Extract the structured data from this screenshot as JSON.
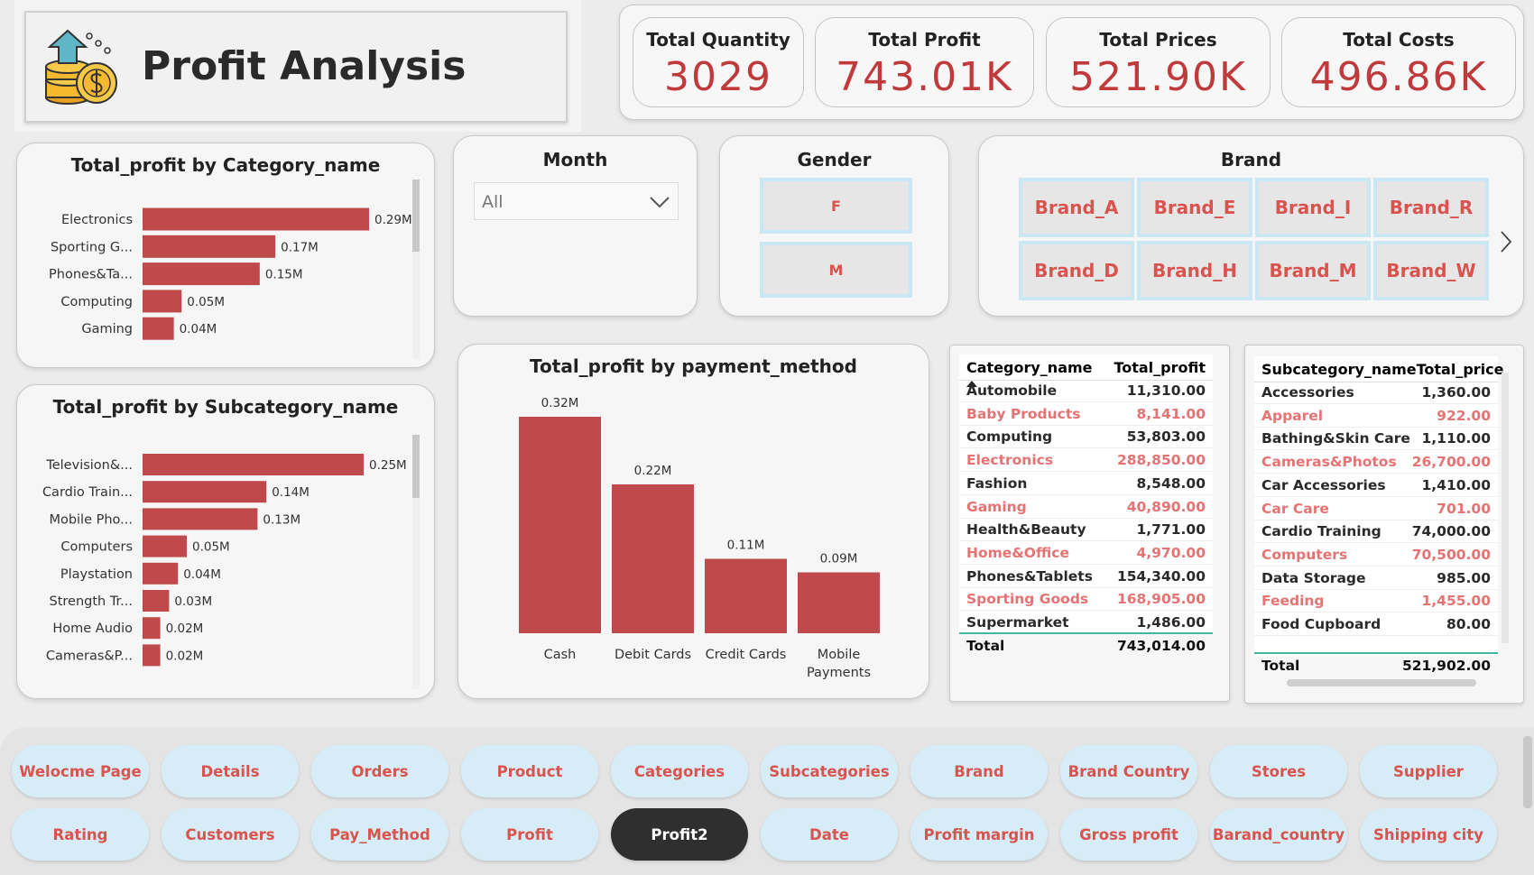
{
  "header": {
    "title": "Profit Analysis"
  },
  "kpis": [
    {
      "label": "Total Quantity",
      "value": "3029"
    },
    {
      "label": "Total Profit",
      "value": "743.01K"
    },
    {
      "label": "Total Prices",
      "value": "521.90K"
    },
    {
      "label": "Total Costs",
      "value": "496.86K"
    }
  ],
  "slicers": {
    "month": {
      "title": "Month",
      "selected": "All"
    },
    "gender": {
      "title": "Gender",
      "options": [
        "F",
        "M"
      ]
    },
    "brand": {
      "title": "Brand",
      "options": [
        "Brand_A",
        "Brand_E",
        "Brand_I",
        "Brand_R",
        "Brand_D",
        "Brand_H",
        "Brand_M",
        "Brand_W"
      ]
    }
  },
  "chart_data": [
    {
      "type": "bar",
      "orientation": "horizontal",
      "title": "Total_profit by Category_name",
      "categories": [
        "Electronics",
        "Sporting G...",
        "Phones&Ta...",
        "Computing",
        "Gaming"
      ],
      "values": [
        0.29,
        0.17,
        0.15,
        0.05,
        0.04
      ],
      "value_labels": [
        "0.29M",
        "0.17M",
        "0.15M",
        "0.05M",
        "0.04M"
      ],
      "color": "#c0494b"
    },
    {
      "type": "bar",
      "orientation": "horizontal",
      "title": "Total_profit by Subcategory_name",
      "categories": [
        "Television&...",
        "Cardio Train...",
        "Mobile Pho...",
        "Computers",
        "Playstation",
        "Strength Tr...",
        "Home Audio",
        "Cameras&P..."
      ],
      "values": [
        0.25,
        0.14,
        0.13,
        0.05,
        0.04,
        0.03,
        0.02,
        0.02
      ],
      "value_labels": [
        "0.25M",
        "0.14M",
        "0.13M",
        "0.05M",
        "0.04M",
        "0.03M",
        "0.02M",
        "0.02M"
      ],
      "color": "#c0494b"
    },
    {
      "type": "bar",
      "orientation": "vertical",
      "title": "Total_profit by payment_method",
      "categories": [
        "Cash",
        "Debit Cards",
        "Credit Cards",
        "Mobile Payments"
      ],
      "values": [
        0.32,
        0.22,
        0.11,
        0.09
      ],
      "value_labels": [
        "0.32M",
        "0.22M",
        "0.11M",
        "0.09M"
      ],
      "color": "#c0494b"
    }
  ],
  "tables": [
    {
      "columns": [
        "Category_name",
        "Total_profit"
      ],
      "rows": [
        [
          "Automobile",
          "11,310.00"
        ],
        [
          "Baby Products",
          "8,141.00"
        ],
        [
          "Computing",
          "53,803.00"
        ],
        [
          "Electronics",
          "288,850.00"
        ],
        [
          "Fashion",
          "8,548.00"
        ],
        [
          "Gaming",
          "40,890.00"
        ],
        [
          "Health&Beauty",
          "1,771.00"
        ],
        [
          "Home&Office",
          "4,970.00"
        ],
        [
          "Phones&Tablets",
          "154,340.00"
        ],
        [
          "Sporting Goods",
          "168,905.00"
        ],
        [
          "Supermarket",
          "1,486.00"
        ]
      ],
      "total": [
        "Total",
        "743,014.00"
      ]
    },
    {
      "columns": [
        "Subcategory_name",
        "Total_price"
      ],
      "rows": [
        [
          "Accessories",
          "1,360.00"
        ],
        [
          "Apparel",
          "922.00"
        ],
        [
          "Bathing&Skin Care",
          "1,110.00"
        ],
        [
          "Cameras&Photos",
          "26,700.00"
        ],
        [
          "Car Accessories",
          "1,410.00"
        ],
        [
          "Car Care",
          "701.00"
        ],
        [
          "Cardio Training",
          "74,000.00"
        ],
        [
          "Computers",
          "70,500.00"
        ],
        [
          "Data Storage",
          "985.00"
        ],
        [
          "Feeding",
          "1,455.00"
        ],
        [
          "Food Cupboard",
          "80.00"
        ]
      ],
      "total": [
        "Total",
        "521,902.00"
      ]
    }
  ],
  "nav": {
    "buttons": [
      "Welocme Page",
      "Details",
      "Orders",
      "Product",
      "Categories",
      "Subcategories",
      "Brand",
      "Brand Country",
      "Stores",
      "Supplier",
      "Rating",
      "Customers",
      "Pay_Method",
      "Profit",
      "Profit2",
      "Date",
      "Profit margin",
      "Gross profit",
      "Barand_country",
      "Shipping city"
    ],
    "active": 14
  }
}
